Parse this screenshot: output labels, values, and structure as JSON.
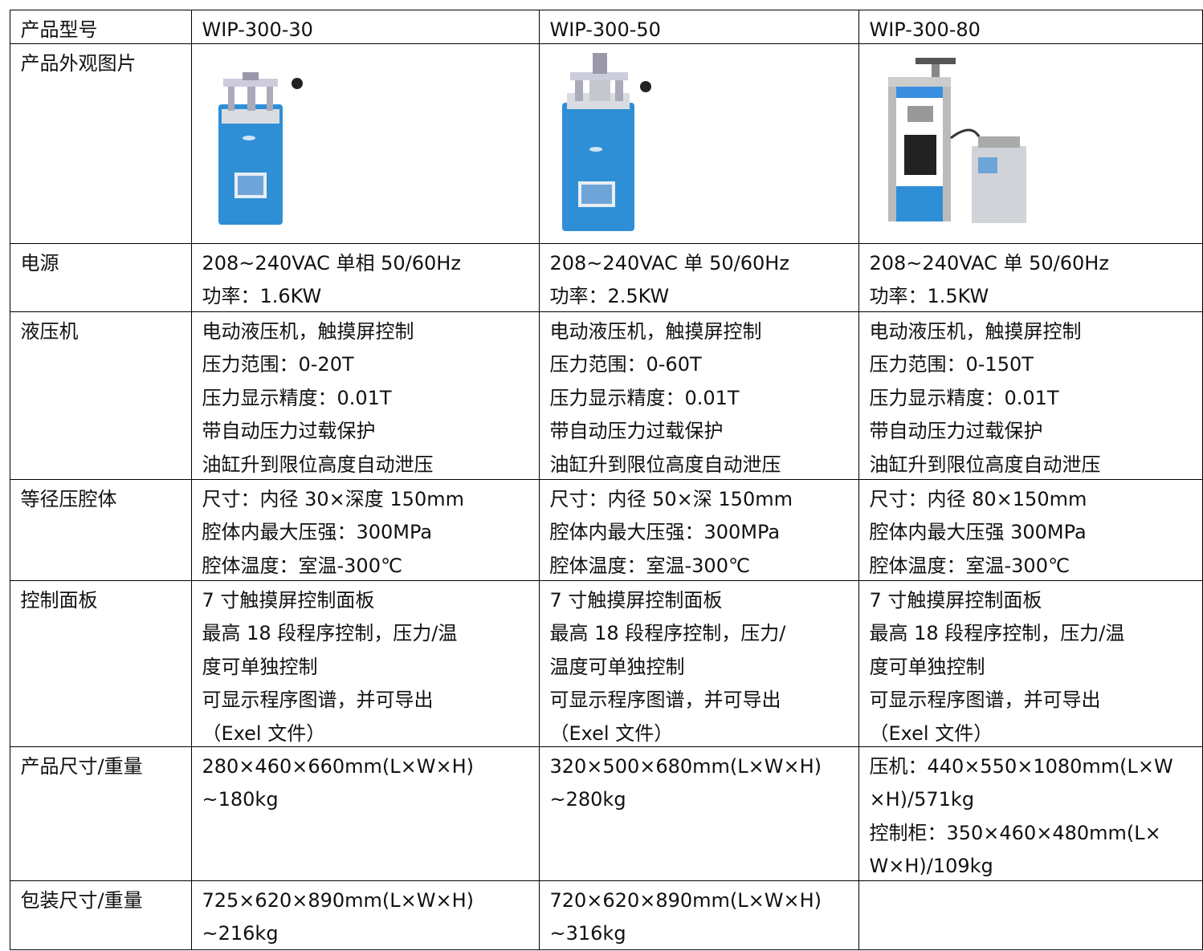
{
  "table": {
    "rows": [
      {
        "label": "产品型号",
        "cells": [
          [
            "WIP-300-30"
          ],
          [
            "WIP-300-50"
          ],
          [
            "WIP-300-80"
          ]
        ]
      },
      {
        "label": "产品外观图片",
        "cells": [
          [],
          [],
          []
        ]
      },
      {
        "label": "电源",
        "cells": [
          [
            "208~240VAC  单相  50/60Hz",
            "功率：1.6KW"
          ],
          [
            "208~240VAC  单 50/60Hz",
            "功率：2.5KW"
          ],
          [
            "208~240VAC  单 50/60Hz",
            "功率：1.5KW"
          ]
        ]
      },
      {
        "label": "液压机",
        "cells": [
          [
            "电动液压机，触摸屏控制",
            "压力范围：0-20T",
            "压力显示精度：0.01T",
            "带自动压力过载保护",
            "油缸升到限位高度自动泄压"
          ],
          [
            "电动液压机，触摸屏控制",
            "压力范围：0-60T",
            "压力显示精度：0.01T",
            "带自动压力过载保护",
            "油缸升到限位高度自动泄压"
          ],
          [
            "电动液压机，触摸屏控制",
            "压力范围：0-150T",
            "压力显示精度：0.01T",
            "带自动压力过载保护",
            "油缸升到限位高度自动泄压"
          ]
        ]
      },
      {
        "label": "等径压腔体",
        "cells": [
          [
            "尺寸：内径 30×深度 150mm",
            "腔体内最大压强：300MPa",
            "腔体温度：室温-300℃"
          ],
          [
            "尺寸：内径 50×深 150mm",
            "腔体内最大压强：300MPa",
            "腔体温度：室温-300℃"
          ],
          [
            "尺寸：内径 80×150mm",
            "腔体内最大压强 300MPa",
            "腔体温度：室温-300℃"
          ]
        ]
      },
      {
        "label": "控制面板",
        "cells": [
          [
            "7 寸触摸屏控制面板",
            "最高 18 段程序控制，压力/温",
            "度可单独控制",
            "可显示程序图谱，并可导出",
            "（Exel 文件）"
          ],
          [
            "7 寸触摸屏控制面板",
            "最高 18 段程序控制，压力/",
            "温度可单独控制",
            "可显示程序图谱，并可导出",
            "（Exel 文件）"
          ],
          [
            "7 寸触摸屏控制面板",
            "最高 18 段程序控制，压力/温",
            "度可单独控制",
            "可显示程序图谱，并可导出",
            "（Exel 文件）"
          ]
        ]
      },
      {
        "label": "产品尺寸/重量",
        "cells": [
          [
            "280×460×660mm(L×W×H)",
            "~180kg"
          ],
          [
            "320×500×680mm(L×W×H)",
            "~280kg"
          ],
          [
            "压机：440×550×1080mm(L×W",
            "×H)/571kg",
            "控制柜：350×460×480mm(L×",
            "W×H)/109kg"
          ]
        ]
      },
      {
        "label": "包装尺寸/重量",
        "cells": [
          [
            "725×620×890mm(L×W×H)",
            "~216kg"
          ],
          [
            "720×620×890mm(L×W×H)",
            "~316kg"
          ],
          []
        ]
      }
    ]
  }
}
